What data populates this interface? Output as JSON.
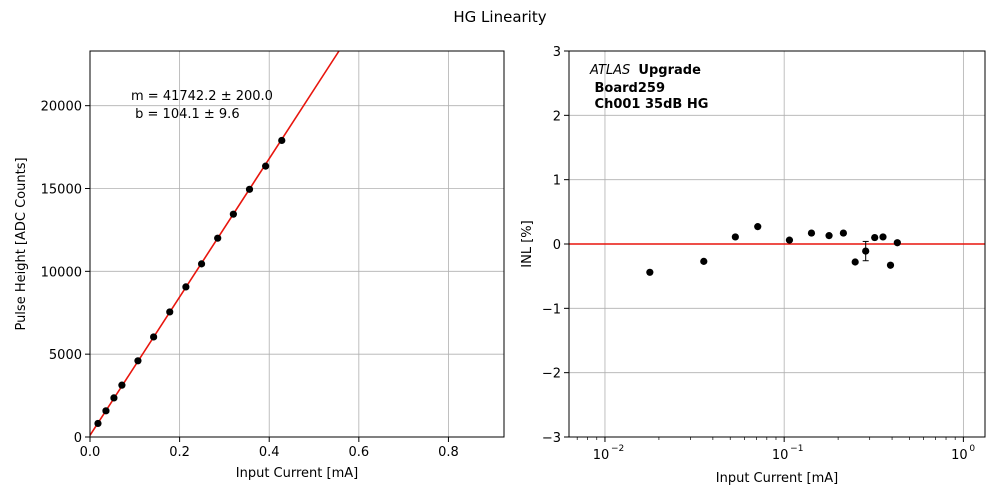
{
  "suptitle": "HG Linearity",
  "colors": {
    "fit": "#e8150d",
    "points": "#000000",
    "grid": "#b0b0b0"
  },
  "chart_data": [
    {
      "type": "scatter",
      "title": "",
      "xlabel": "Input Current [mA]",
      "ylabel": "Pulse Height [ADC Counts]",
      "xlim": [
        0,
        0.924
      ],
      "ylim": [
        0,
        23300
      ],
      "xticks": [
        0,
        0.2,
        0.4,
        0.6,
        0.8
      ],
      "xtick_labels": [
        "0.0",
        "0.2",
        "0.4",
        "0.6",
        "0.8"
      ],
      "yticks": [
        0,
        5000,
        10000,
        15000,
        20000
      ],
      "ytick_labels": [
        "0",
        "5000",
        "10000",
        "15000",
        "20000"
      ],
      "grid": true,
      "fit": {
        "slope": 41742.2,
        "intercept": 104.1
      },
      "annotation": [
        "m = 41742.2 ± 200.0",
        " b = 104.1 ± 9.6"
      ],
      "series": [
        {
          "x": [
            0.0178,
            0.0356,
            0.0534,
            0.0712,
            0.107,
            0.142,
            0.178,
            0.214,
            0.249,
            0.285,
            0.32,
            0.356,
            0.392,
            0.428
          ],
          "y": [
            820,
            1580,
            2360,
            3130,
            4600,
            6040,
            7550,
            9060,
            10450,
            12000,
            13450,
            14950,
            16350,
            17900
          ]
        }
      ]
    },
    {
      "type": "scatter",
      "title": "",
      "xlabel": "Input Current [mA]",
      "ylabel": "INL [%]",
      "xscale": "log",
      "xlim": [
        0.0063,
        1.32
      ],
      "ylim": [
        -3,
        3
      ],
      "xticks": [
        0.01,
        0.1,
        1
      ],
      "xtick_labels": [
        "10",
        "10",
        "10"
      ],
      "xtick_exponents": [
        "−2",
        "−1",
        "0"
      ],
      "yticks": [
        -3,
        -2,
        -1,
        0,
        1,
        2,
        3
      ],
      "ytick_labels": [
        "−3",
        "−2",
        "−1",
        "0",
        "1",
        "2",
        "3"
      ],
      "grid": true,
      "reference_line": 0,
      "annotation": {
        "italic": "ATLAS",
        "bold": [
          "Upgrade",
          " Board259",
          " Ch001 35dB HG"
        ]
      },
      "series": [
        {
          "x": [
            0.0178,
            0.0356,
            0.0534,
            0.0712,
            0.107,
            0.142,
            0.178,
            0.214,
            0.249,
            0.285,
            0.32,
            0.356,
            0.392,
            0.428
          ],
          "y": [
            -0.44,
            -0.27,
            0.11,
            0.27,
            0.06,
            0.17,
            0.13,
            0.17,
            -0.28,
            -0.11,
            0.1,
            0.11,
            -0.33,
            0.02
          ],
          "yerr": [
            0.02,
            0.02,
            0.02,
            0.02,
            0.02,
            0.02,
            0.02,
            0.02,
            0.02,
            0.15,
            0.02,
            0.02,
            0.02,
            0.02
          ]
        }
      ]
    }
  ]
}
